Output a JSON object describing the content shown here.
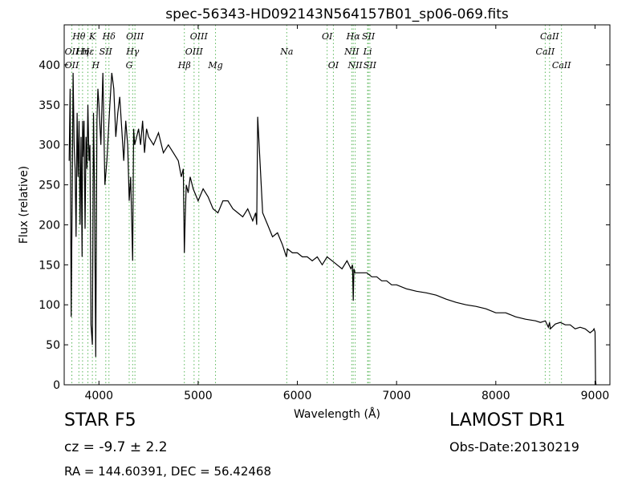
{
  "chart_data": {
    "type": "line",
    "title": "spec-56343-HD092143N564157B01_sp06-069.fits",
    "xlabel": "Wavelength (Å)",
    "ylabel": "Flux (relative)",
    "xlim": [
      3650,
      9150
    ],
    "ylim": [
      0,
      450
    ],
    "xticks": [
      4000,
      5000,
      6000,
      7000,
      8000,
      9000
    ],
    "yticks": [
      0,
      50,
      100,
      150,
      200,
      250,
      300,
      350,
      400
    ],
    "grid": false,
    "line_color": "#000000",
    "marker_color": "#5cb85c",
    "series": [
      {
        "x": [
          3700,
          3710,
          3720,
          3730,
          3740,
          3750,
          3760,
          3770,
          3780,
          3790,
          3800,
          3810,
          3820,
          3830,
          3835,
          3840,
          3850,
          3860,
          3870,
          3880,
          3889,
          3900,
          3910,
          3920,
          3934,
          3945,
          3955,
          3968,
          3980,
          3990,
          4000,
          4020,
          4040,
          4060,
          4080,
          4101,
          4110,
          4130,
          4150,
          4170,
          4190,
          4210,
          4230,
          4250,
          4270,
          4290,
          4305,
          4320,
          4340,
          4350,
          4360,
          4380,
          4400,
          4420,
          4440,
          4460,
          4480,
          4500,
          4550,
          4600,
          4650,
          4700,
          4750,
          4800,
          4830,
          4850,
          4861,
          4870,
          4880,
          4900,
          4920,
          4950,
          5000,
          5050,
          5100,
          5150,
          5200,
          5250,
          5300,
          5350,
          5400,
          5450,
          5500,
          5550,
          5580,
          5590,
          5600,
          5650,
          5700,
          5750,
          5800,
          5850,
          5890,
          5900,
          5950,
          6000,
          6050,
          6100,
          6150,
          6200,
          6250,
          6300,
          6350,
          6400,
          6450,
          6500,
          6540,
          6555,
          6563,
          6570,
          6580,
          6600,
          6650,
          6700,
          6750,
          6800,
          6850,
          6900,
          6950,
          7000,
          7100,
          7200,
          7300,
          7400,
          7500,
          7600,
          7700,
          7800,
          7900,
          8000,
          8100,
          8200,
          8300,
          8400,
          8450,
          8500,
          8530,
          8542,
          8550,
          8600,
          8650,
          8700,
          8750,
          8800,
          8850,
          8900,
          8950,
          8980,
          8990,
          9000,
          9005,
          9010
        ],
        "y": [
          280,
          370,
          85,
          230,
          390,
          300,
          270,
          185,
          340,
          260,
          330,
          200,
          310,
          160,
          330,
          285,
          330,
          195,
          310,
          270,
          350,
          280,
          300,
          75,
          50,
          340,
          250,
          35,
          330,
          370,
          350,
          300,
          390,
          250,
          280,
          330,
          350,
          390,
          370,
          310,
          340,
          360,
          320,
          280,
          330,
          300,
          230,
          260,
          155,
          320,
          300,
          310,
          320,
          300,
          330,
          290,
          320,
          310,
          300,
          315,
          290,
          300,
          290,
          280,
          260,
          270,
          165,
          210,
          250,
          240,
          260,
          245,
          230,
          245,
          235,
          220,
          215,
          230,
          230,
          220,
          215,
          210,
          220,
          205,
          215,
          200,
          335,
          215,
          200,
          185,
          190,
          175,
          160,
          170,
          165,
          165,
          160,
          160,
          155,
          160,
          150,
          160,
          155,
          150,
          145,
          155,
          145,
          150,
          105,
          145,
          140,
          140,
          140,
          140,
          135,
          135,
          130,
          130,
          125,
          125,
          120,
          117,
          115,
          112,
          107,
          103,
          100,
          98,
          95,
          90,
          90,
          85,
          82,
          80,
          78,
          80,
          72,
          78,
          70,
          76,
          78,
          75,
          75,
          70,
          72,
          70,
          65,
          68,
          70,
          66,
          5,
          0
        ]
      }
    ],
    "line_markers": [
      {
        "name": "Hθ",
        "x": 3798,
        "row": 0
      },
      {
        "name": "OII",
        "x": 3727,
        "row": 1
      },
      {
        "name": "OII",
        "x": 3727,
        "row": 2
      },
      {
        "name": "Hη",
        "x": 3835,
        "row": 1
      },
      {
        "name": "Hε",
        "x": 3889,
        "row": 1
      },
      {
        "name": "K",
        "x": 3934,
        "row": 0
      },
      {
        "name": "H",
        "x": 3968,
        "row": 2
      },
      {
        "name": "SII",
        "x": 4069,
        "row": 1
      },
      {
        "name": "Hδ",
        "x": 4101,
        "row": 0
      },
      {
        "name": "OIII",
        "x": 4363,
        "row": 0
      },
      {
        "name": "Hγ",
        "x": 4340,
        "row": 1
      },
      {
        "name": "G",
        "x": 4305,
        "row": 2
      },
      {
        "name": "OIII",
        "x": 5007,
        "row": 0
      },
      {
        "name": "OIII",
        "x": 4959,
        "row": 1
      },
      {
        "name": "Hβ",
        "x": 4861,
        "row": 2
      },
      {
        "name": "Mg",
        "x": 5175,
        "row": 2
      },
      {
        "name": "Na",
        "x": 5893,
        "row": 1
      },
      {
        "name": "OI",
        "x": 6300,
        "row": 0
      },
      {
        "name": "OI",
        "x": 6363,
        "row": 2
      },
      {
        "name": "Hα",
        "x": 6563,
        "row": 0
      },
      {
        "name": "NII",
        "x": 6548,
        "row": 1
      },
      {
        "name": "NII",
        "x": 6583,
        "row": 2
      },
      {
        "name": "SII",
        "x": 6716,
        "row": 0
      },
      {
        "name": "Li",
        "x": 6708,
        "row": 1
      },
      {
        "name": "SII",
        "x": 6731,
        "row": 2
      },
      {
        "name": "CaII",
        "x": 8542,
        "row": 0
      },
      {
        "name": "CaII",
        "x": 8498,
        "row": 1
      },
      {
        "name": "CaII",
        "x": 8662,
        "row": 2
      }
    ]
  },
  "info": {
    "object_class": "STAR   F5",
    "survey": "LAMOST DR1",
    "cz": "cz = -9.7 ± 2.2",
    "obs_date": "Obs-Date:20130219",
    "radec": "RA = 144.60391, DEC = 56.42468"
  }
}
